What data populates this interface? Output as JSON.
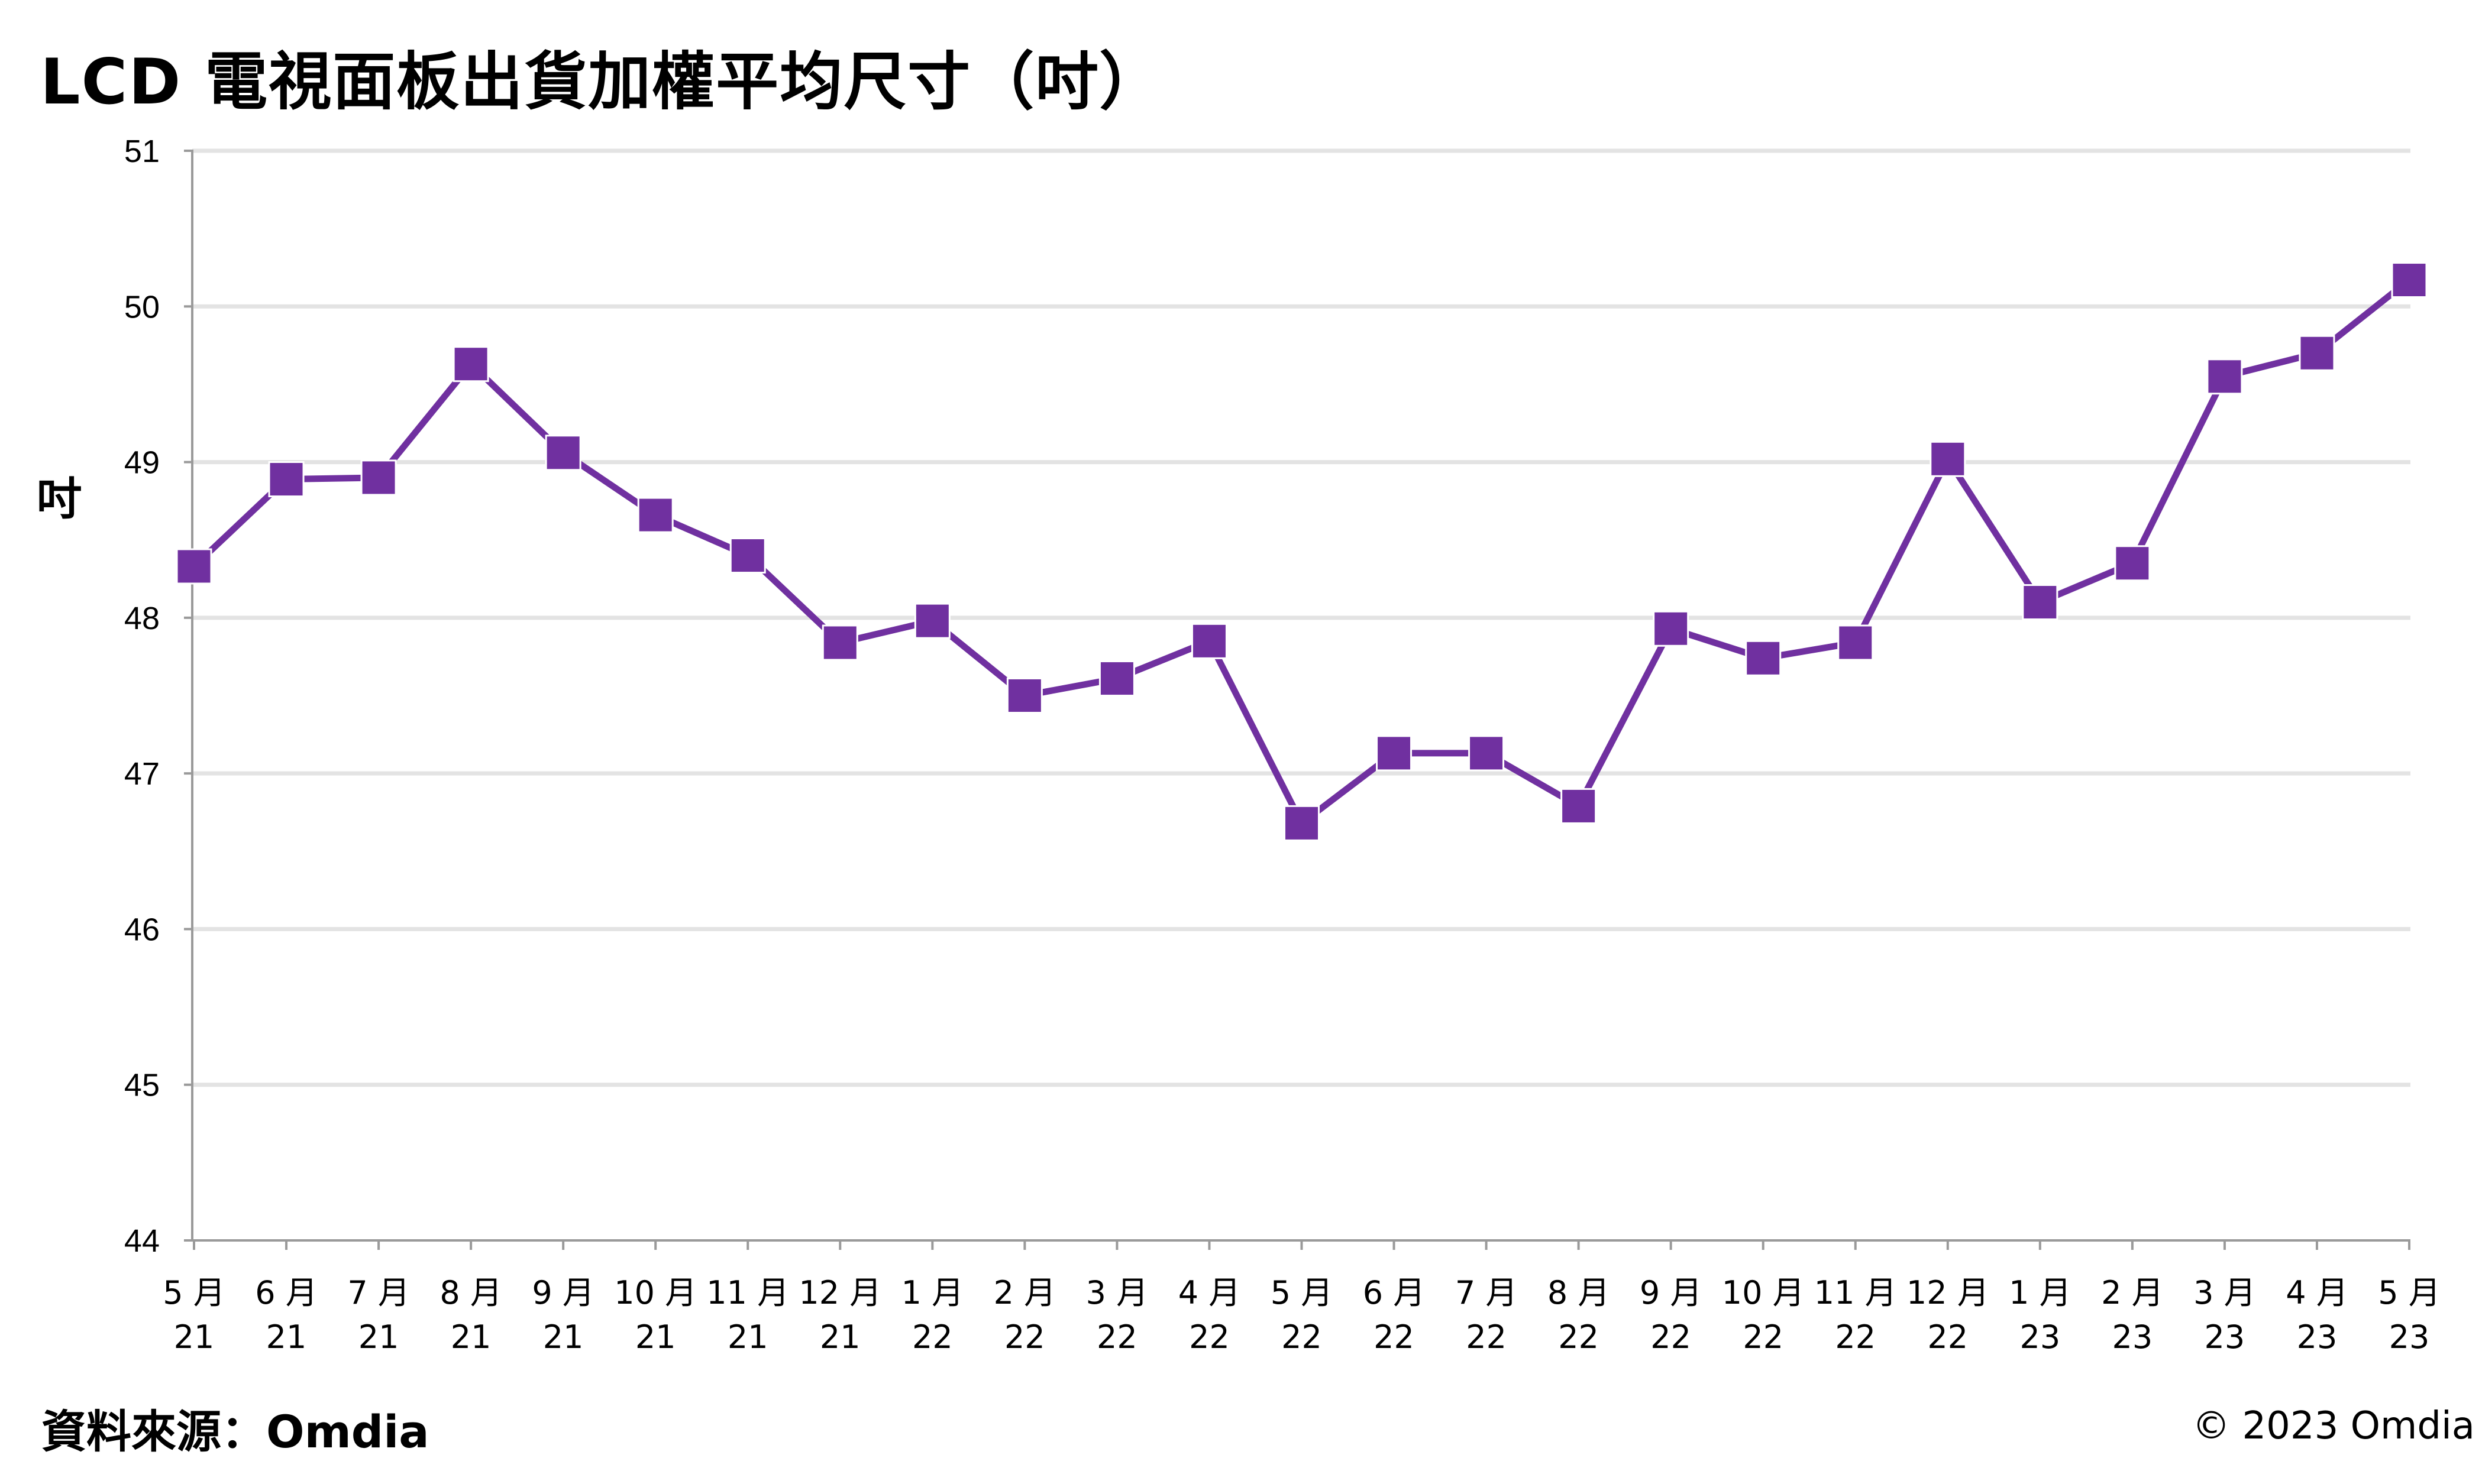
{
  "title": "LCD 電視面板出貨加權平均尺寸（吋）",
  "source": "資料來源：Omdia",
  "copyright": "© 2023 Omdia",
  "colors": {
    "series": "#7030A0",
    "grid": "#e3e3e3",
    "axis": "#9a9a9a"
  },
  "chart_data": {
    "type": "line",
    "ylabel": "吋",
    "xlabel": "",
    "ylim": [
      44,
      51
    ],
    "yticks": [
      44,
      45,
      46,
      47,
      48,
      49,
      50,
      51
    ],
    "grid": true,
    "marker": "square",
    "categories": [
      [
        "5 月",
        "21"
      ],
      [
        "6 月",
        "21"
      ],
      [
        "7 月",
        "21"
      ],
      [
        "8 月",
        "21"
      ],
      [
        "9 月",
        "21"
      ],
      [
        "10 月",
        "21"
      ],
      [
        "11 月",
        "21"
      ],
      [
        "12 月",
        "21"
      ],
      [
        "1 月",
        "22"
      ],
      [
        "2 月",
        "22"
      ],
      [
        "3 月",
        "22"
      ],
      [
        "4 月",
        "22"
      ],
      [
        "5 月",
        "22"
      ],
      [
        "6 月",
        "22"
      ],
      [
        "7 月",
        "22"
      ],
      [
        "8 月",
        "22"
      ],
      [
        "9 月",
        "22"
      ],
      [
        "10 月",
        "22"
      ],
      [
        "11 月",
        "22"
      ],
      [
        "12 月",
        "22"
      ],
      [
        "1 月",
        "23"
      ],
      [
        "2 月",
        "23"
      ],
      [
        "3 月",
        "23"
      ],
      [
        "4 月",
        "23"
      ],
      [
        "5 月",
        "23"
      ]
    ],
    "series": [
      {
        "values": [
          48.33,
          48.89,
          48.9,
          49.63,
          49.06,
          48.66,
          48.4,
          47.84,
          47.98,
          47.5,
          47.61,
          47.85,
          46.68,
          47.13,
          47.13,
          46.79,
          47.93,
          47.74,
          47.84,
          49.02,
          48.1,
          48.35,
          49.55,
          49.7,
          50.17
        ]
      }
    ]
  }
}
